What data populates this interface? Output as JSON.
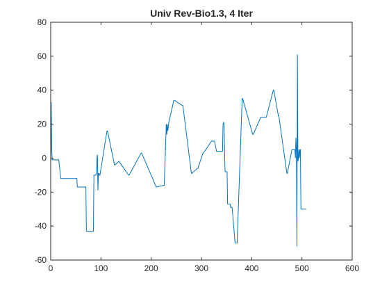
{
  "chart_data": {
    "type": "line",
    "title": "Univ Rev-Bio1.3, 4 Iter",
    "xlabel": "",
    "ylabel": "",
    "xlim": [
      0,
      600
    ],
    "ylim": [
      -60,
      80
    ],
    "xticks": [
      0,
      100,
      200,
      300,
      400,
      500,
      600
    ],
    "yticks": [
      -60,
      -40,
      -20,
      0,
      20,
      40,
      60,
      80
    ],
    "grid": false,
    "colors": {
      "series": "#0072BD",
      "axes": "#262626",
      "background": "#ffffff"
    },
    "series": [
      {
        "x": [
          0,
          1,
          2,
          3,
          4,
          5,
          6,
          8,
          10,
          14,
          15,
          16,
          20,
          52,
          53,
          70,
          71,
          85,
          86,
          88,
          90,
          91,
          92,
          93,
          94,
          95,
          96,
          97,
          98,
          112,
          113,
          127,
          128,
          135,
          136,
          155,
          156,
          180,
          181,
          210,
          211,
          225,
          226,
          230,
          231,
          232,
          233,
          234,
          235,
          245,
          246,
          262,
          263,
          280,
          281,
          292,
          293,
          303,
          304,
          320,
          321,
          325,
          326,
          330,
          331,
          342,
          343,
          344,
          345,
          346,
          347,
          348,
          349,
          350,
          351,
          352,
          353,
          354,
          355,
          356,
          357,
          358,
          359,
          360,
          361,
          367,
          368,
          370,
          371,
          381,
          382,
          402,
          403,
          418,
          419,
          428,
          429,
          443,
          444,
          453,
          454,
          470,
          471,
          480,
          481,
          482,
          483,
          484,
          485,
          486,
          487,
          488,
          489,
          490,
          491,
          492,
          493,
          494,
          495,
          496,
          497,
          498,
          499,
          500,
          501,
          502,
          508
        ],
        "values": [
          -1,
          33,
          5,
          -1,
          -1,
          -1,
          -1,
          -1,
          -1,
          -1,
          -1,
          -1,
          -12,
          -12,
          -17,
          -17,
          -43,
          -43,
          -10,
          -10,
          -10,
          -9,
          0,
          2,
          -19,
          -9,
          -9,
          -10,
          -10,
          16,
          16,
          -4,
          -4,
          -2,
          -2,
          -10,
          -10,
          3,
          3,
          -17,
          -17,
          -16,
          -16,
          20,
          14,
          20,
          16,
          18,
          21,
          34,
          34,
          31,
          31,
          -9,
          -9,
          -6,
          -6,
          3,
          3,
          10,
          10,
          10,
          10,
          4,
          4,
          4,
          20,
          21,
          20,
          5,
          -8,
          -8,
          -8,
          -8,
          -8,
          -27,
          -27,
          -27,
          -27,
          -27,
          -27,
          -29,
          -29,
          -29,
          -29,
          -50,
          -50,
          -50,
          -50,
          35,
          35,
          14,
          14,
          24,
          24,
          24,
          24,
          40,
          40,
          25,
          25,
          -9,
          -9,
          5,
          5,
          5,
          5,
          5,
          5,
          5,
          0,
          12,
          5,
          -52,
          61,
          -2,
          0,
          5,
          0,
          5,
          5,
          -30,
          -30,
          -30,
          -30,
          -30,
          -30
        ]
      }
    ]
  }
}
